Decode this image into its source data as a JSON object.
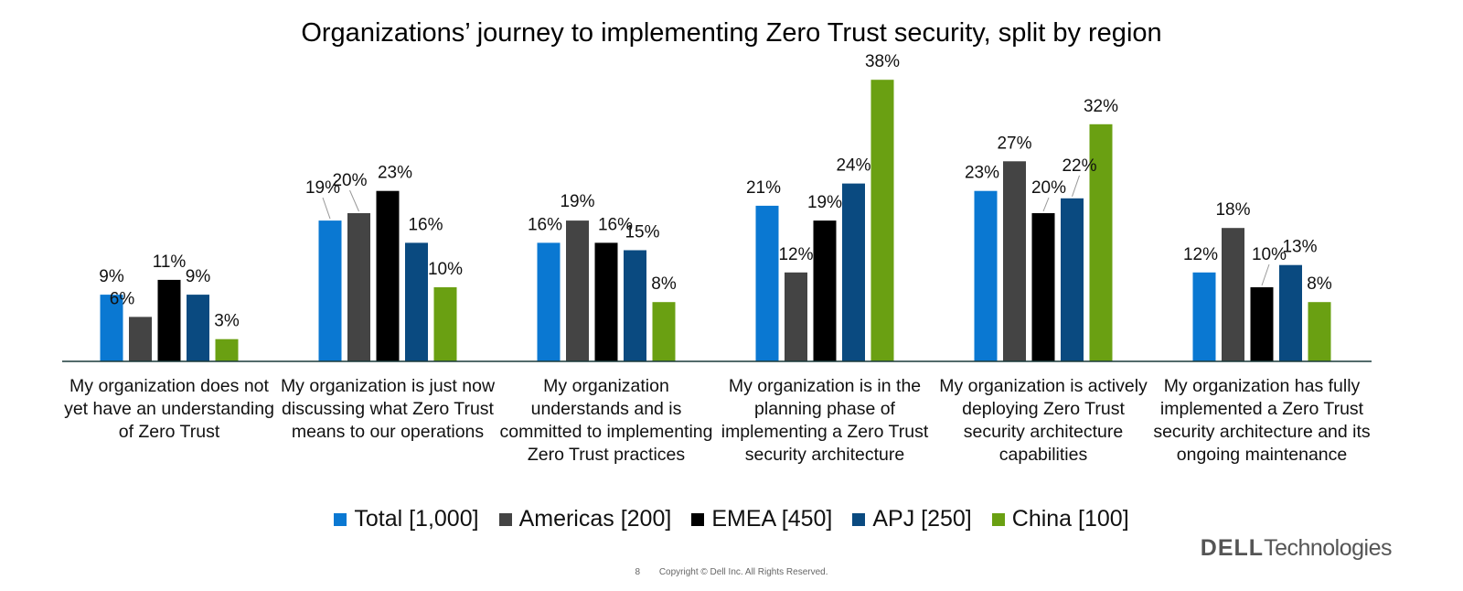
{
  "chart_data": {
    "type": "bar",
    "title": "Organizations’ journey to implementing Zero Trust security, split by region",
    "categories": [
      "My organization does not yet have an understanding of Zero Trust",
      "My organization is just now discussing what Zero Trust means to our operations",
      "My organization understands and is committed to implementing Zero Trust practices",
      "My organization is in the planning phase of implementing a Zero Trust security architecture",
      "My organization is actively deploying Zero Trust security architecture capabilities",
      "My organization has fully implemented a Zero Trust security architecture and its ongoing maintenance"
    ],
    "series": [
      {
        "name": "Total [1,000]",
        "color": "#0a78d2",
        "values": [
          9,
          19,
          16,
          21,
          23,
          12
        ]
      },
      {
        "name": "Americas [200]",
        "color": "#444444",
        "values": [
          6,
          20,
          19,
          12,
          27,
          18
        ]
      },
      {
        "name": "EMEA [450]",
        "color": "#000000",
        "values": [
          11,
          23,
          16,
          19,
          20,
          10
        ]
      },
      {
        "name": "APJ [250]",
        "color": "#0a4a80",
        "values": [
          9,
          16,
          15,
          24,
          22,
          13
        ]
      },
      {
        "name": "China [100]",
        "color": "#6aa012",
        "values": [
          3,
          10,
          8,
          38,
          32,
          8
        ]
      }
    ],
    "value_suffix": "%",
    "ylim": [
      0,
      40
    ],
    "legend_position": "bottom",
    "grid": false
  },
  "footer": {
    "page_number": "8",
    "copyright": "Copyright © Dell Inc. All Rights Reserved."
  },
  "logo": {
    "brand": "DELL",
    "suffix": "Technologies"
  }
}
